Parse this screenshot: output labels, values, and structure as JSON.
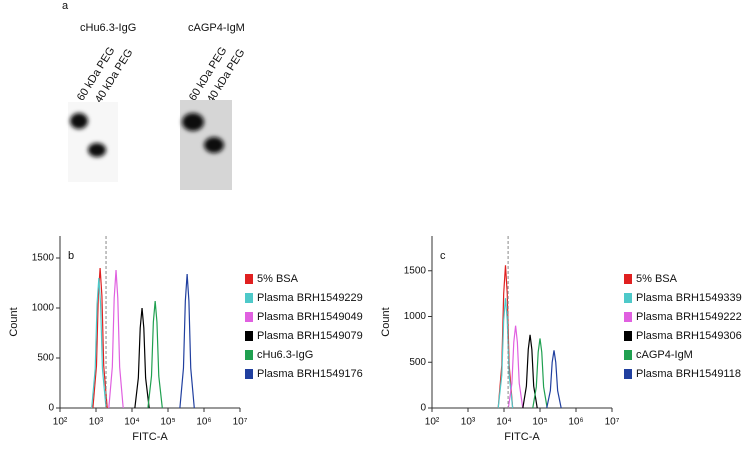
{
  "panel_a": {
    "label": "a",
    "blots": [
      {
        "title": "cHu6.3-IgG",
        "lanes": [
          "60 kDa PEG",
          "40 kDa PEG"
        ]
      },
      {
        "title": "cAGP4-IgM",
        "lanes": [
          "60 kDa PEG",
          "40 kDa PEG"
        ]
      }
    ]
  },
  "chart_data": [
    {
      "type": "line",
      "panel_label": "b",
      "xlabel": "FITC-A",
      "ylabel": "Count",
      "xscale": "log",
      "xlim": [
        100,
        10000000
      ],
      "xticks": [
        {
          "value": 100,
          "label": "10²"
        },
        {
          "value": 1000,
          "label": "10³"
        },
        {
          "value": 10000,
          "label": "10⁴"
        },
        {
          "value": 100000,
          "label": "10⁵"
        },
        {
          "value": 1000000,
          "label": "10⁶"
        },
        {
          "value": 10000000,
          "label": "10⁷"
        }
      ],
      "ylim": [
        0,
        1720
      ],
      "yticks": [
        0,
        500,
        1000,
        1500
      ],
      "threshold": 1900,
      "series": [
        {
          "name": "5% BSA",
          "color": "#e02020",
          "x": [
            820,
            1030,
            1160,
            1300,
            1460,
            1640,
            2050
          ],
          "values": [
            0,
            420,
            1120,
            1400,
            1120,
            420,
            0
          ]
        },
        {
          "name": "Plasma BRH1549229",
          "color": "#4ec9c9",
          "x": [
            760,
            950,
            1070,
            1200,
            1340,
            1510,
            1900
          ],
          "values": [
            0,
            390,
            1040,
            1300,
            1040,
            390,
            0
          ]
        },
        {
          "name": "Plasma BRH1549049",
          "color": "#e060e0",
          "x": [
            2270,
            2840,
            3200,
            3600,
            4030,
            4540,
            5690
          ],
          "values": [
            0,
            410,
            1100,
            1380,
            1100,
            410,
            0
          ]
        },
        {
          "name": "Plasma BRH1549079",
          "color": "#000000",
          "x": [
            12000,
            15000,
            16900,
            19000,
            21300,
            23900,
            30000
          ],
          "values": [
            0,
            300,
            800,
            1000,
            800,
            300,
            0
          ]
        },
        {
          "name": "cHu6.3-IgG",
          "color": "#20a050",
          "x": [
            27700,
            34800,
            39200,
            44000,
            49300,
            55400,
            69500
          ],
          "values": [
            0,
            320,
            860,
            1070,
            860,
            320,
            0
          ]
        },
        {
          "name": "Plasma BRH1549176",
          "color": "#203f9f",
          "x": [
            214000,
            269000,
            303000,
            340000,
            381000,
            428000,
            537000
          ],
          "values": [
            0,
            400,
            1070,
            1340,
            1070,
            400,
            0
          ]
        }
      ]
    },
    {
      "type": "line",
      "panel_label": "c",
      "xlabel": "FITC-A",
      "ylabel": "Count",
      "xscale": "log",
      "xlim": [
        100,
        10000000
      ],
      "xticks": [
        {
          "value": 100,
          "label": "10²"
        },
        {
          "value": 1000,
          "label": "10³"
        },
        {
          "value": 10000,
          "label": "10⁴"
        },
        {
          "value": 100000,
          "label": "10⁵"
        },
        {
          "value": 1000000,
          "label": "10⁶"
        },
        {
          "value": 10000000,
          "label": "10⁷"
        }
      ],
      "ylim": [
        0,
        1880
      ],
      "yticks": [
        0,
        500,
        1000,
        1500
      ],
      "threshold": 13000,
      "series": [
        {
          "name": "5% BSA",
          "color": "#e02020",
          "x": [
            6900,
            8700,
            9800,
            11000,
            12300,
            13900,
            17400
          ],
          "values": [
            0,
            470,
            1250,
            1560,
            1250,
            470,
            0
          ]
        },
        {
          "name": "Plasma BRH1549339",
          "color": "#4ec9c9",
          "x": [
            6900,
            8700,
            9800,
            11000,
            12300,
            13900,
            17400
          ],
          "values": [
            0,
            360,
            960,
            1200,
            960,
            360,
            0
          ]
        },
        {
          "name": "Plasma BRH1549222",
          "color": "#e060e0",
          "x": [
            13200,
            16600,
            18700,
            21000,
            23500,
            26500,
            33200
          ],
          "values": [
            0,
            270,
            720,
            900,
            720,
            270,
            0
          ]
        },
        {
          "name": "Plasma BRH1549306",
          "color": "#000000",
          "x": [
            33400,
            41900,
            47200,
            53000,
            59400,
            66800,
            83700
          ],
          "values": [
            0,
            240,
            640,
            800,
            640,
            240,
            0
          ]
        },
        {
          "name": "cAGP4-IgM",
          "color": "#20a050",
          "x": [
            63000,
            79000,
            89000,
            100000,
            112000,
            126000,
            158000
          ],
          "values": [
            0,
            230,
            610,
            760,
            610,
            230,
            0
          ]
        },
        {
          "name": "Plasma BRH1549118",
          "color": "#203f9f",
          "x": [
            154000,
            194000,
            218000,
            245000,
            274000,
            309000,
            387000
          ],
          "values": [
            0,
            190,
            500,
            630,
            500,
            190,
            0
          ]
        }
      ]
    }
  ]
}
